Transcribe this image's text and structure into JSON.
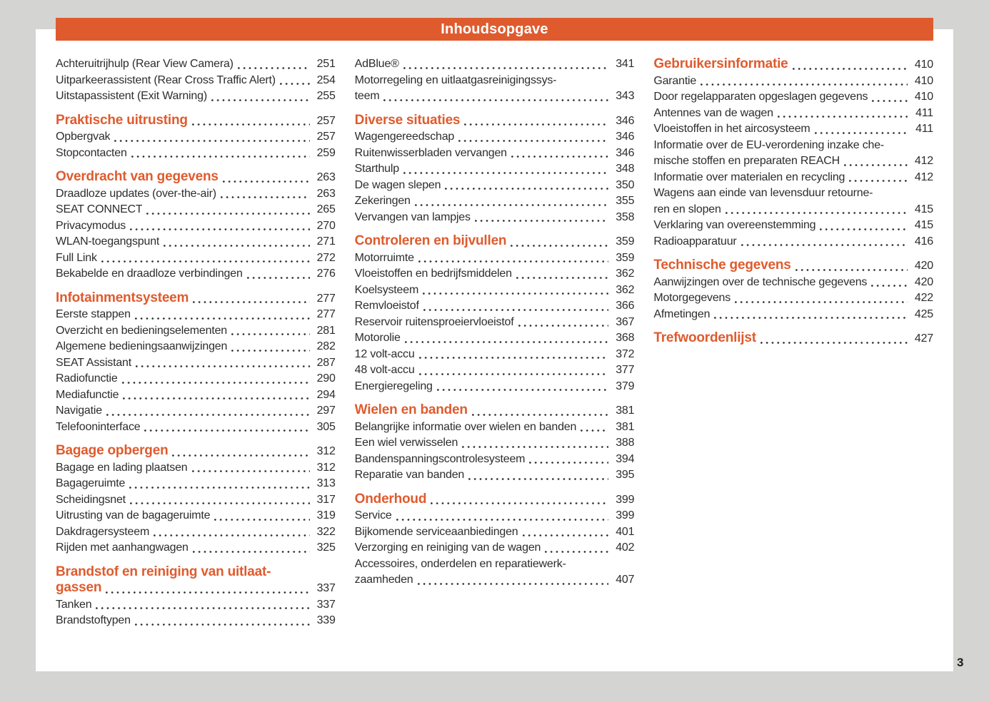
{
  "header": {
    "title": "Inhoudsopgave"
  },
  "footer": {
    "page_number": "3"
  },
  "colors": {
    "accent": "#df5b2e",
    "text": "#2d2d2d",
    "canvas": "#d4d4d2",
    "page": "#ffffff"
  },
  "columns": [
    {
      "blocks": [
        {
          "heading": null,
          "entries": [
            {
              "lines": [
                "Achteruitrijhulp (Rear View Camera)"
              ],
              "page": "251"
            },
            {
              "lines": [
                "Uitparkeerassistent (Rear Cross Traffic Alert)"
              ],
              "page": "254"
            },
            {
              "lines": [
                "Uitstapassistent (Exit Warning)"
              ],
              "page": "255"
            }
          ]
        },
        {
          "heading": {
            "lines": [
              "Praktische uitrusting"
            ],
            "page": "257"
          },
          "entries": [
            {
              "lines": [
                "Opbergvak"
              ],
              "page": "257"
            },
            {
              "lines": [
                "Stopcontacten"
              ],
              "page": "259"
            }
          ]
        },
        {
          "heading": {
            "lines": [
              "Overdracht van gegevens"
            ],
            "page": "263"
          },
          "entries": [
            {
              "lines": [
                "Draadloze updates (over-the-air)"
              ],
              "page": "263"
            },
            {
              "lines": [
                "SEAT CONNECT"
              ],
              "page": "265"
            },
            {
              "lines": [
                "Privacymodus"
              ],
              "page": "270"
            },
            {
              "lines": [
                "WLAN-toegangspunt"
              ],
              "page": "271"
            },
            {
              "lines": [
                "Full Link"
              ],
              "page": "272"
            },
            {
              "lines": [
                "Bekabelde en draadloze verbindingen"
              ],
              "page": "276"
            }
          ]
        },
        {
          "heading": {
            "lines": [
              "Infotainmentsysteem"
            ],
            "page": "277"
          },
          "entries": [
            {
              "lines": [
                "Eerste stappen"
              ],
              "page": "277"
            },
            {
              "lines": [
                "Overzicht en bedieningselementen"
              ],
              "page": "281"
            },
            {
              "lines": [
                "Algemene bedieningsaanwijzingen"
              ],
              "page": "282"
            },
            {
              "lines": [
                "SEAT Assistant"
              ],
              "page": "287"
            },
            {
              "lines": [
                "Radiofunctie"
              ],
              "page": "290"
            },
            {
              "lines": [
                "Mediafunctie"
              ],
              "page": "294"
            },
            {
              "lines": [
                "Navigatie"
              ],
              "page": "297"
            },
            {
              "lines": [
                "Telefooninterface"
              ],
              "page": "305"
            }
          ]
        },
        {
          "heading": {
            "lines": [
              "Bagage opbergen"
            ],
            "page": "312"
          },
          "entries": [
            {
              "lines": [
                "Bagage en lading plaatsen"
              ],
              "page": "312"
            },
            {
              "lines": [
                "Bagageruimte"
              ],
              "page": "313"
            },
            {
              "lines": [
                "Scheidingsnet"
              ],
              "page": "317"
            },
            {
              "lines": [
                "Uitrusting van de bagageruimte"
              ],
              "page": "319"
            },
            {
              "lines": [
                "Dakdragersysteem"
              ],
              "page": "322"
            },
            {
              "lines": [
                "Rijden met aanhangwagen"
              ],
              "page": "325"
            }
          ]
        },
        {
          "heading": {
            "lines": [
              "Brandstof en reiniging van uitlaat-",
              "gassen"
            ],
            "page": "337"
          },
          "entries": [
            {
              "lines": [
                "Tanken"
              ],
              "page": "337"
            },
            {
              "lines": [
                "Brandstoftypen"
              ],
              "page": "339"
            }
          ]
        }
      ]
    },
    {
      "blocks": [
        {
          "heading": null,
          "entries": [
            {
              "lines": [
                "AdBlue®"
              ],
              "page": "341"
            },
            {
              "lines": [
                "Motorregeling en uitlaatgasreinigingssys-",
                "teem"
              ],
              "page": "343"
            }
          ]
        },
        {
          "heading": {
            "lines": [
              "Diverse situaties"
            ],
            "page": "346"
          },
          "entries": [
            {
              "lines": [
                "Wagengereedschap"
              ],
              "page": "346"
            },
            {
              "lines": [
                "Ruitenwisserbladen vervangen"
              ],
              "page": "346"
            },
            {
              "lines": [
                "Starthulp"
              ],
              "page": "348"
            },
            {
              "lines": [
                "De wagen slepen"
              ],
              "page": "350"
            },
            {
              "lines": [
                "Zekeringen"
              ],
              "page": "355"
            },
            {
              "lines": [
                "Vervangen van lampjes"
              ],
              "page": "358"
            }
          ]
        },
        {
          "heading": {
            "lines": [
              "Controleren en bijvullen"
            ],
            "page": "359"
          },
          "entries": [
            {
              "lines": [
                "Motorruimte"
              ],
              "page": "359"
            },
            {
              "lines": [
                "Vloeistoffen en bedrijfsmiddelen"
              ],
              "page": "362"
            },
            {
              "lines": [
                "Koelsysteem"
              ],
              "page": "362"
            },
            {
              "lines": [
                "Remvloeistof"
              ],
              "page": "366"
            },
            {
              "lines": [
                "Reservoir ruitensproeiervloeistof"
              ],
              "page": "367"
            },
            {
              "lines": [
                "Motorolie"
              ],
              "page": "368"
            },
            {
              "lines": [
                "12 volt-accu"
              ],
              "page": "372"
            },
            {
              "lines": [
                "48 volt-accu"
              ],
              "page": "377"
            },
            {
              "lines": [
                "Energieregeling"
              ],
              "page": "379"
            }
          ]
        },
        {
          "heading": {
            "lines": [
              "Wielen en banden"
            ],
            "page": "381"
          },
          "entries": [
            {
              "lines": [
                "Belangrijke informatie over wielen en banden"
              ],
              "page": "381"
            },
            {
              "lines": [
                "Een wiel verwisselen"
              ],
              "page": "388"
            },
            {
              "lines": [
                "Bandenspanningscontrolesysteem"
              ],
              "page": "394"
            },
            {
              "lines": [
                "Reparatie van banden"
              ],
              "page": "395"
            }
          ]
        },
        {
          "heading": {
            "lines": [
              "Onderhoud"
            ],
            "page": "399"
          },
          "entries": [
            {
              "lines": [
                "Service"
              ],
              "page": "399"
            },
            {
              "lines": [
                "Bijkomende serviceaanbiedingen"
              ],
              "page": "401"
            },
            {
              "lines": [
                "Verzorging en reiniging van de wagen"
              ],
              "page": "402"
            },
            {
              "lines": [
                "Accessoires, onderdelen en reparatiewerk-",
                "zaamheden"
              ],
              "page": "407"
            }
          ]
        }
      ]
    },
    {
      "blocks": [
        {
          "heading": {
            "lines": [
              "Gebruikersinformatie"
            ],
            "page": "410"
          },
          "entries": [
            {
              "lines": [
                "Garantie"
              ],
              "page": "410"
            },
            {
              "lines": [
                "Door regelapparaten opgeslagen gegevens"
              ],
              "page": "410"
            },
            {
              "lines": [
                "Antennes van de wagen"
              ],
              "page": "411"
            },
            {
              "lines": [
                "Vloeistoffen in het aircosysteem"
              ],
              "page": "411"
            },
            {
              "lines": [
                "Informatie over de EU-verordening inzake che-",
                "mische stoffen en preparaten REACH"
              ],
              "page": "412"
            },
            {
              "lines": [
                "Informatie over materialen en recycling"
              ],
              "page": "412"
            },
            {
              "lines": [
                "Wagens aan einde van levensduur retourne-",
                "ren en slopen"
              ],
              "page": "415"
            },
            {
              "lines": [
                "Verklaring van overeenstemming"
              ],
              "page": "415"
            },
            {
              "lines": [
                "Radioapparatuur"
              ],
              "page": "416"
            }
          ]
        },
        {
          "heading": {
            "lines": [
              "Technische gegevens"
            ],
            "page": "420"
          },
          "entries": [
            {
              "lines": [
                "Aanwijzingen over de technische gegevens"
              ],
              "page": "420"
            },
            {
              "lines": [
                "Motorgegevens"
              ],
              "page": "422"
            },
            {
              "lines": [
                "Afmetingen"
              ],
              "page": "425"
            }
          ]
        },
        {
          "heading": {
            "lines": [
              "Trefwoordenlijst"
            ],
            "page": "427"
          },
          "entries": []
        }
      ]
    }
  ]
}
